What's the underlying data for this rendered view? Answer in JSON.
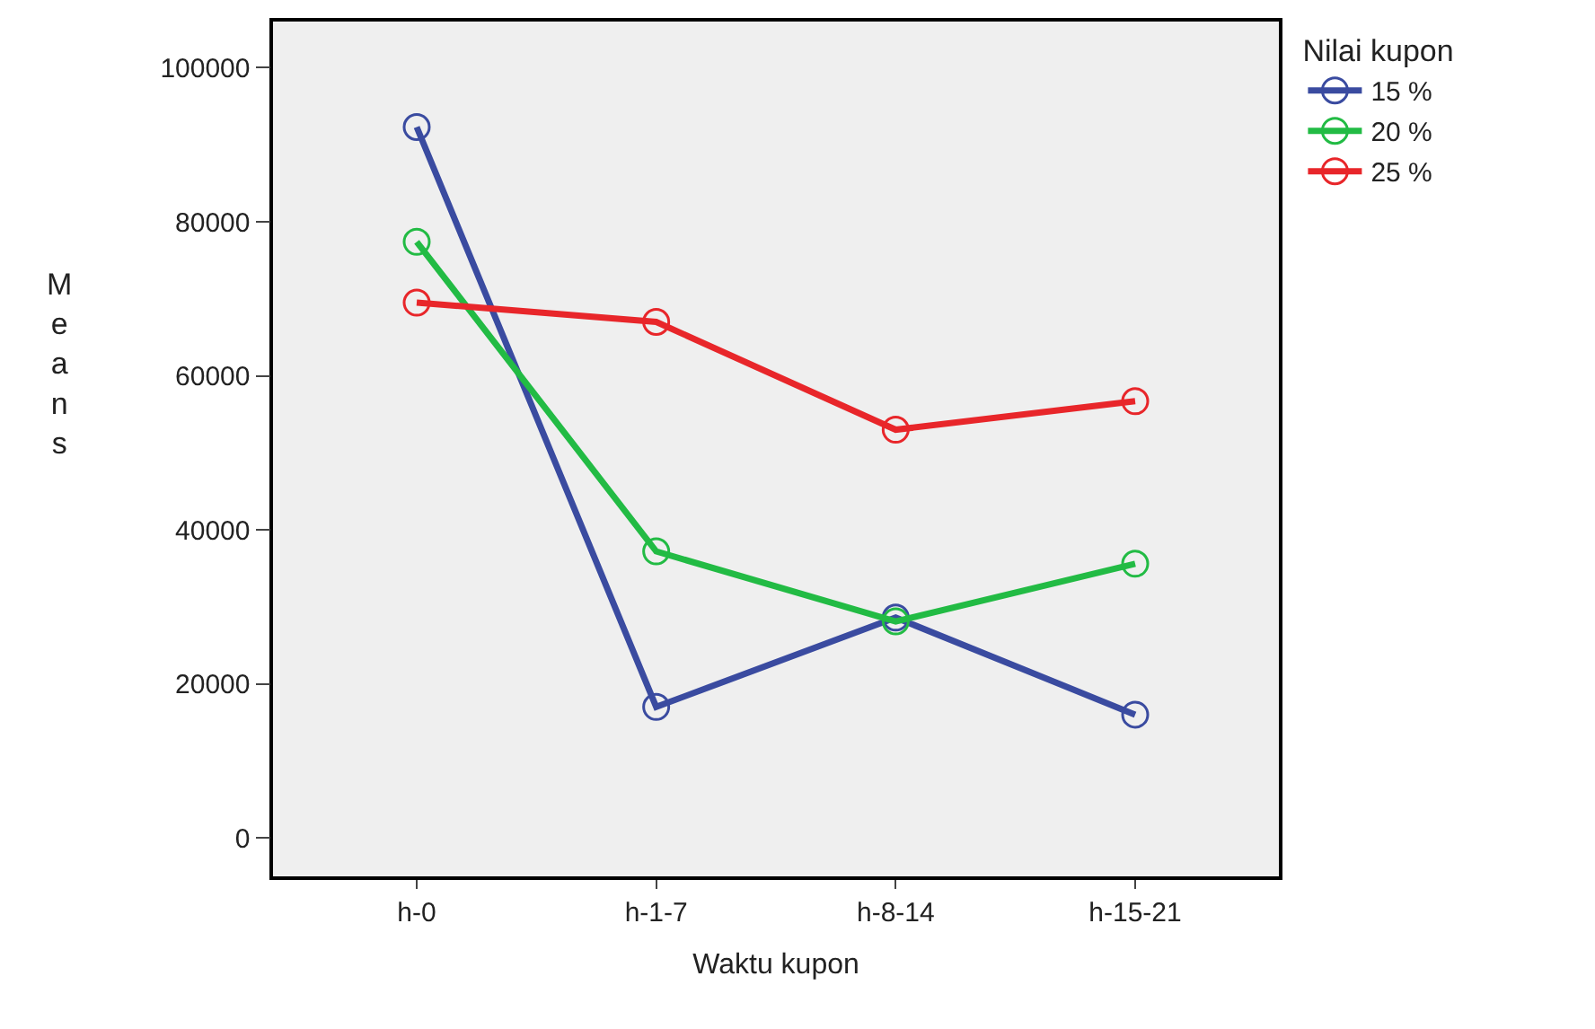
{
  "chart_data": {
    "type": "line",
    "xlabel": "Waktu kupon",
    "ylabel": "Means",
    "legend_title": "Nilai kupon",
    "categories": [
      "h-0",
      "h-1-7",
      "h-8-14",
      "h-15-21"
    ],
    "series": [
      {
        "name": "15 %",
        "color": "#3a4ba0",
        "values": [
          92300,
          17000,
          28600,
          16000
        ]
      },
      {
        "name": "20 %",
        "color": "#22bb44",
        "values": [
          77400,
          37200,
          28100,
          35600
        ]
      },
      {
        "name": "25 %",
        "color": "#e8262a",
        "values": [
          69500,
          67000,
          53000,
          56700
        ]
      }
    ],
    "ylim": [
      -5000,
      106000
    ],
    "yticks": [
      0,
      20000,
      40000,
      60000,
      80000,
      100000
    ],
    "grid": false,
    "legend": "top right",
    "marker": "circle",
    "line_style": "solid"
  }
}
